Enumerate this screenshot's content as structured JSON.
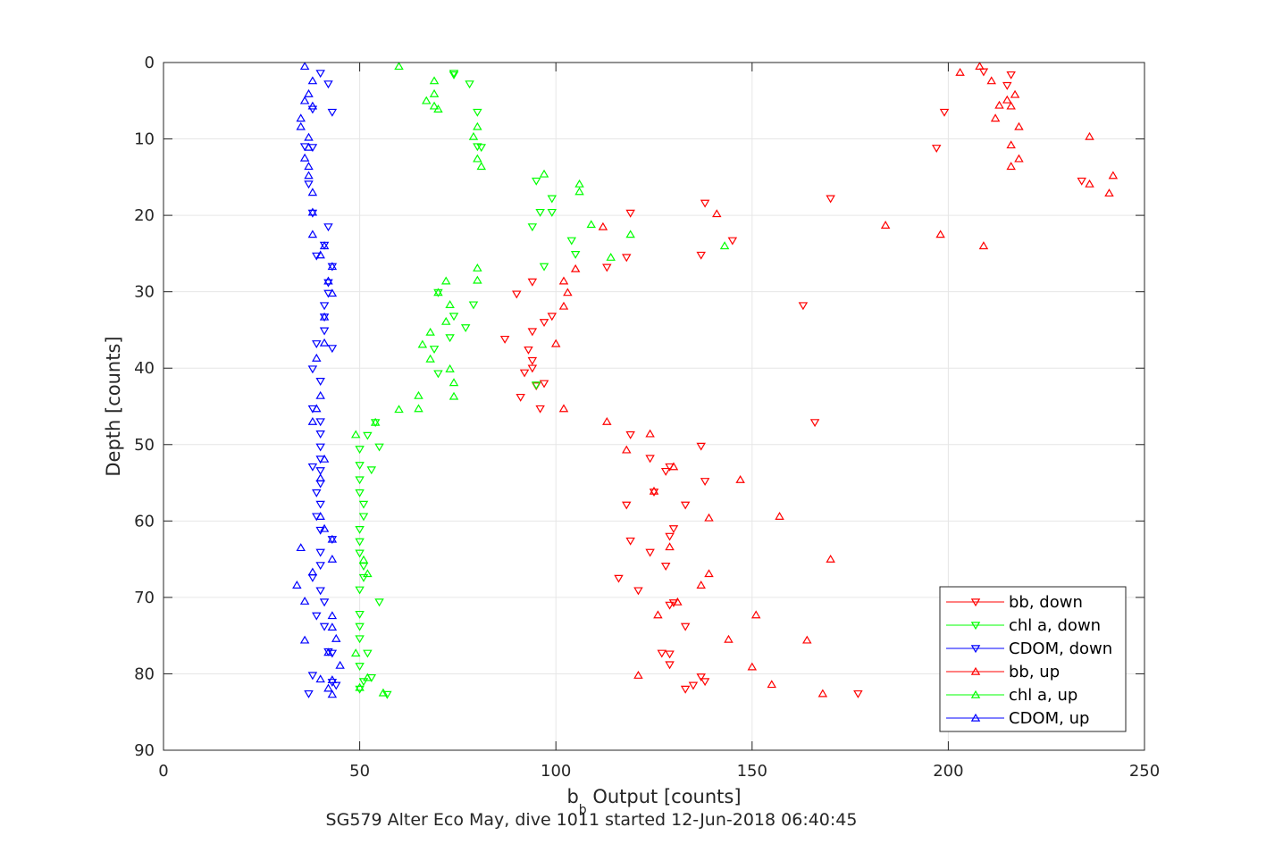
{
  "chart_data": {
    "type": "scatter",
    "title": "SG579 Alter Eco May, dive 1011 started 12-Jun-2018 06:40:45",
    "xlabel": {
      "main": "b",
      "sub": "b",
      "rest": " Output [counts]"
    },
    "ylabel": "Depth [counts]",
    "xlim": [
      0,
      250
    ],
    "ylim": [
      0,
      90
    ],
    "y_reversed": true,
    "grid": true,
    "legend_position": "bottom-right",
    "xticks": [
      "0",
      "50",
      "100",
      "150",
      "200",
      "250"
    ],
    "yticks": [
      "0",
      "10",
      "20",
      "30",
      "40",
      "50",
      "60",
      "70",
      "80",
      "90"
    ],
    "series": [
      {
        "name": "bb, down",
        "color": "#ff0000",
        "marker": "triangle-down",
        "points": [
          [
            209,
            1.2
          ],
          [
            216,
            1.6
          ],
          [
            215,
            3
          ],
          [
            199,
            6.5
          ],
          [
            197,
            11.2
          ],
          [
            234,
            15.5
          ],
          [
            170,
            17.8
          ],
          [
            138,
            18.4
          ],
          [
            119,
            19.7
          ],
          [
            145,
            23.3
          ],
          [
            137,
            25.2
          ],
          [
            118,
            25.5
          ],
          [
            113,
            26.8
          ],
          [
            94,
            28.7
          ],
          [
            90,
            30.3
          ],
          [
            163,
            31.8
          ],
          [
            99,
            33.2
          ],
          [
            97,
            34
          ],
          [
            94,
            35.2
          ],
          [
            87,
            36.2
          ],
          [
            93,
            37.6
          ],
          [
            94,
            39
          ],
          [
            94,
            40
          ],
          [
            92,
            40.6
          ],
          [
            97,
            42
          ],
          [
            95,
            42.3
          ],
          [
            91,
            43.8
          ],
          [
            96,
            45.3
          ],
          [
            166,
            47.1
          ],
          [
            119,
            48.7
          ],
          [
            137,
            50.2
          ],
          [
            124,
            51.8
          ],
          [
            129,
            52.9
          ],
          [
            128,
            53.5
          ],
          [
            138,
            54.8
          ],
          [
            125,
            56.2
          ],
          [
            133,
            57.9
          ],
          [
            118,
            57.9
          ],
          [
            130,
            61
          ],
          [
            129,
            62
          ],
          [
            119,
            62.6
          ],
          [
            124,
            64.1
          ],
          [
            128,
            65.9
          ],
          [
            116,
            67.5
          ],
          [
            121,
            69.1
          ],
          [
            130,
            70.7
          ],
          [
            129,
            71
          ],
          [
            133,
            73.8
          ],
          [
            127,
            77.3
          ],
          [
            129,
            77.4
          ],
          [
            129,
            78.8
          ],
          [
            137,
            80.4
          ],
          [
            138,
            81
          ],
          [
            135,
            81.5
          ],
          [
            133,
            82
          ],
          [
            177,
            82.6
          ]
        ]
      },
      {
        "name": "chl a, down",
        "color": "#00ff00",
        "marker": "triangle-down",
        "points": [
          [
            74,
            1.4
          ],
          [
            74,
            1.6
          ],
          [
            78,
            2.8
          ],
          [
            80,
            6.5
          ],
          [
            80,
            11
          ],
          [
            81,
            11.1
          ],
          [
            95,
            15.5
          ],
          [
            99,
            17.8
          ],
          [
            96,
            19.6
          ],
          [
            99,
            19.6
          ],
          [
            94,
            21.5
          ],
          [
            104,
            23.3
          ],
          [
            105,
            25.1
          ],
          [
            97,
            26.7
          ],
          [
            70,
            30.1
          ],
          [
            79,
            31.7
          ],
          [
            74,
            33.2
          ],
          [
            73,
            36
          ],
          [
            77,
            34.7
          ],
          [
            69,
            37.5
          ],
          [
            70,
            40.7
          ],
          [
            95,
            42.2
          ],
          [
            54,
            47.1
          ],
          [
            52,
            48.8
          ],
          [
            55,
            50.3
          ],
          [
            50,
            50.6
          ],
          [
            50,
            52.7
          ],
          [
            53,
            53.3
          ],
          [
            50,
            54.6
          ],
          [
            50,
            56.3
          ],
          [
            51,
            57.8
          ],
          [
            51,
            59.4
          ],
          [
            50,
            61.1
          ],
          [
            50,
            62.7
          ],
          [
            50,
            64.2
          ],
          [
            51,
            65.9
          ],
          [
            51,
            67.4
          ],
          [
            50,
            69
          ],
          [
            55,
            70.6
          ],
          [
            50,
            72.2
          ],
          [
            50,
            73.8
          ],
          [
            50,
            75.4
          ],
          [
            52,
            77.3
          ],
          [
            50,
            79
          ],
          [
            53,
            80.5
          ],
          [
            51,
            81
          ],
          [
            50,
            82
          ],
          [
            57,
            82.7
          ]
        ]
      },
      {
        "name": "CDOM, down",
        "color": "#0000ff",
        "marker": "triangle-down",
        "points": [
          [
            40,
            1.4
          ],
          [
            42,
            2.8
          ],
          [
            43,
            6.5
          ],
          [
            38,
            6.1
          ],
          [
            36,
            11
          ],
          [
            38,
            11.1
          ],
          [
            37,
            15.9
          ],
          [
            38,
            19.7
          ],
          [
            42,
            21.5
          ],
          [
            41,
            23.9
          ],
          [
            39,
            25.3
          ],
          [
            43,
            26.7
          ],
          [
            42,
            28.8
          ],
          [
            42,
            30.2
          ],
          [
            41,
            31.8
          ],
          [
            41,
            33.3
          ],
          [
            41,
            35.1
          ],
          [
            39,
            36.8
          ],
          [
            43,
            37.4
          ],
          [
            38,
            40.1
          ],
          [
            40,
            41.7
          ],
          [
            38,
            45.3
          ],
          [
            40,
            47
          ],
          [
            40,
            48.6
          ],
          [
            40,
            50.3
          ],
          [
            40,
            51.9
          ],
          [
            38,
            52.9
          ],
          [
            40,
            53.4
          ],
          [
            40,
            55.1
          ],
          [
            39,
            56.3
          ],
          [
            40,
            57.8
          ],
          [
            39,
            59.4
          ],
          [
            40,
            61.2
          ],
          [
            43,
            62.4
          ],
          [
            40,
            64.1
          ],
          [
            40,
            65.8
          ],
          [
            38,
            67.4
          ],
          [
            40,
            69.1
          ],
          [
            41,
            70.6
          ],
          [
            39,
            72.4
          ],
          [
            41,
            73.8
          ],
          [
            43,
            77.3
          ],
          [
            42,
            77.1
          ],
          [
            38,
            80.2
          ],
          [
            44,
            81.5
          ],
          [
            43,
            81.1
          ],
          [
            37,
            82.6
          ]
        ]
      },
      {
        "name": "bb, up",
        "color": "#ff0000",
        "marker": "triangle-up",
        "points": [
          [
            208,
            0.5
          ],
          [
            203,
            1.3
          ],
          [
            211,
            2.4
          ],
          [
            217,
            4.2
          ],
          [
            215,
            4.9
          ],
          [
            216,
            5.7
          ],
          [
            213,
            5.6
          ],
          [
            212,
            7.3
          ],
          [
            218,
            8.4
          ],
          [
            236,
            9.7
          ],
          [
            216,
            10.8
          ],
          [
            218,
            12.6
          ],
          [
            216,
            13.6
          ],
          [
            242,
            14.8
          ],
          [
            236,
            15.9
          ],
          [
            241,
            17.1
          ],
          [
            141,
            19.8
          ],
          [
            184,
            21.3
          ],
          [
            198,
            22.5
          ],
          [
            209,
            24
          ],
          [
            112,
            21.5
          ],
          [
            105,
            27
          ],
          [
            102,
            28.6
          ],
          [
            103,
            30.1
          ],
          [
            102,
            31.9
          ],
          [
            100,
            36.8
          ],
          [
            102,
            45.3
          ],
          [
            113,
            47
          ],
          [
            118,
            50.7
          ],
          [
            124,
            48.6
          ],
          [
            130,
            52.9
          ],
          [
            147,
            54.6
          ],
          [
            125,
            56.1
          ],
          [
            139,
            59.6
          ],
          [
            157,
            59.4
          ],
          [
            129,
            63.4
          ],
          [
            170,
            65
          ],
          [
            139,
            66.9
          ],
          [
            137,
            68.4
          ],
          [
            126,
            72.3
          ],
          [
            151,
            72.3
          ],
          [
            144,
            75.5
          ],
          [
            164,
            75.6
          ],
          [
            150,
            79.1
          ],
          [
            155,
            81.4
          ],
          [
            168,
            82.6
          ],
          [
            121,
            80.2
          ],
          [
            131,
            70.6
          ]
        ]
      },
      {
        "name": "chl a, up",
        "color": "#00ff00",
        "marker": "triangle-up",
        "points": [
          [
            60,
            0.5
          ],
          [
            69,
            2.4
          ],
          [
            69,
            4.1
          ],
          [
            67,
            5
          ],
          [
            69,
            5.7
          ],
          [
            70,
            6.1
          ],
          [
            80,
            8.4
          ],
          [
            79,
            9.7
          ],
          [
            80,
            12.6
          ],
          [
            81,
            13.6
          ],
          [
            97,
            14.6
          ],
          [
            106,
            15.9
          ],
          [
            106,
            16.9
          ],
          [
            109,
            21.2
          ],
          [
            119,
            22.5
          ],
          [
            114,
            25.5
          ],
          [
            143,
            24
          ],
          [
            80,
            26.9
          ],
          [
            80,
            28.5
          ],
          [
            72,
            28.6
          ],
          [
            70,
            30.1
          ],
          [
            73,
            31.7
          ],
          [
            72,
            33.9
          ],
          [
            68,
            35.3
          ],
          [
            66,
            36.9
          ],
          [
            68,
            38.8
          ],
          [
            73,
            40.1
          ],
          [
            74,
            41.9
          ],
          [
            74,
            43.7
          ],
          [
            65,
            43.6
          ],
          [
            65,
            45.3
          ],
          [
            60,
            45.4
          ],
          [
            54,
            47.1
          ],
          [
            49,
            48.7
          ],
          [
            51,
            65.1
          ],
          [
            52,
            66.9
          ],
          [
            49,
            77.3
          ],
          [
            52,
            80.5
          ],
          [
            56,
            82.5
          ],
          [
            50,
            81.8
          ]
        ]
      },
      {
        "name": "CDOM, up",
        "color": "#0000ff",
        "marker": "triangle-up",
        "points": [
          [
            36,
            0.5
          ],
          [
            38,
            2.4
          ],
          [
            37,
            4.1
          ],
          [
            36,
            5
          ],
          [
            38,
            5.7
          ],
          [
            35,
            7.3
          ],
          [
            35,
            8.4
          ],
          [
            37,
            9.8
          ],
          [
            37,
            11.1
          ],
          [
            36,
            12.5
          ],
          [
            37,
            13.6
          ],
          [
            37,
            14.8
          ],
          [
            38,
            17
          ],
          [
            38,
            19.6
          ],
          [
            38,
            22.5
          ],
          [
            41,
            24
          ],
          [
            40,
            25.2
          ],
          [
            43,
            26.7
          ],
          [
            42,
            28.6
          ],
          [
            43,
            30.2
          ],
          [
            41,
            33.3
          ],
          [
            41,
            36.7
          ],
          [
            39,
            38.7
          ],
          [
            40,
            43.6
          ],
          [
            39,
            45.3
          ],
          [
            38,
            47
          ],
          [
            41,
            51.9
          ],
          [
            40,
            54.4
          ],
          [
            40,
            59.4
          ],
          [
            41,
            61
          ],
          [
            43,
            62.4
          ],
          [
            35,
            63.5
          ],
          [
            43,
            65
          ],
          [
            38,
            66.7
          ],
          [
            34,
            68.4
          ],
          [
            36,
            70.5
          ],
          [
            43,
            72.4
          ],
          [
            43,
            73.9
          ],
          [
            44,
            75.4
          ],
          [
            36,
            75.6
          ],
          [
            42,
            77.2
          ],
          [
            45,
            78.9
          ],
          [
            40,
            80.7
          ],
          [
            43,
            80.8
          ],
          [
            42,
            81.9
          ],
          [
            43,
            82.7
          ]
        ]
      }
    ]
  }
}
